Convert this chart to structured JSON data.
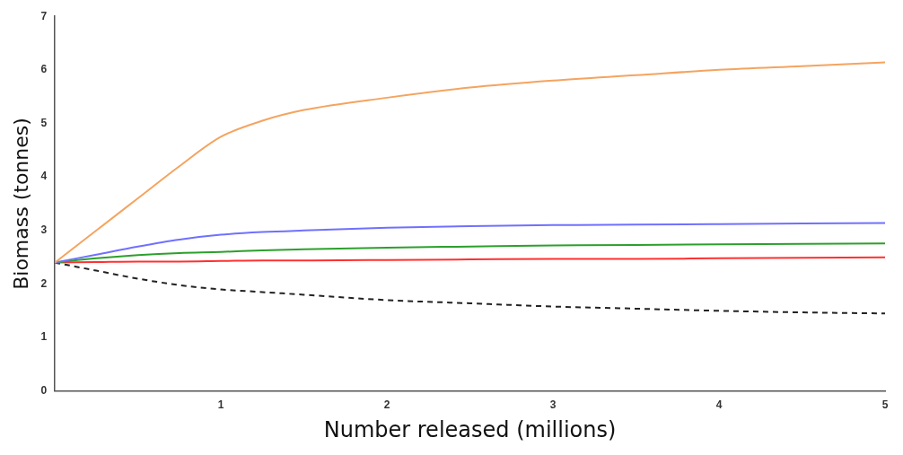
{
  "chart_data": {
    "type": "line",
    "xlabel": "Number released (millions)",
    "ylabel": "Biomass (tonnes)",
    "x": [
      0,
      0.25,
      0.5,
      0.75,
      1,
      1.25,
      1.5,
      2,
      2.5,
      3,
      3.5,
      4,
      4.5,
      5
    ],
    "series": [
      {
        "color": "#f4a460",
        "values": [
          2.4,
          3.0,
          3.6,
          4.2,
          4.75,
          5.05,
          5.25,
          5.48,
          5.67,
          5.8,
          5.9,
          6.0,
          6.07,
          6.14
        ]
      },
      {
        "color": "#7070ff",
        "values": [
          2.4,
          2.55,
          2.7,
          2.83,
          2.92,
          2.97,
          3.0,
          3.05,
          3.08,
          3.1,
          3.11,
          3.12,
          3.13,
          3.14
        ]
      },
      {
        "color": "#2ca02c",
        "values": [
          2.4,
          2.48,
          2.54,
          2.58,
          2.6,
          2.63,
          2.65,
          2.68,
          2.7,
          2.72,
          2.73,
          2.74,
          2.75,
          2.76
        ]
      },
      {
        "color": "#ff3030",
        "values": [
          2.4,
          2.41,
          2.42,
          2.42,
          2.43,
          2.44,
          2.44,
          2.45,
          2.46,
          2.47,
          2.47,
          2.48,
          2.49,
          2.5
        ]
      },
      {
        "color": "#222222",
        "line_style": "dashed",
        "values": [
          2.4,
          2.25,
          2.1,
          1.98,
          1.9,
          1.85,
          1.8,
          1.7,
          1.64,
          1.58,
          1.54,
          1.5,
          1.47,
          1.45
        ]
      }
    ],
    "xlim": [
      0,
      5
    ],
    "xticks": [
      1,
      2,
      3,
      4,
      5
    ],
    "ylim": [
      0,
      7
    ],
    "yticks": [
      0,
      1,
      2,
      3,
      4,
      5,
      6,
      7
    ],
    "grid": false,
    "legend": false,
    "marker": "none"
  }
}
